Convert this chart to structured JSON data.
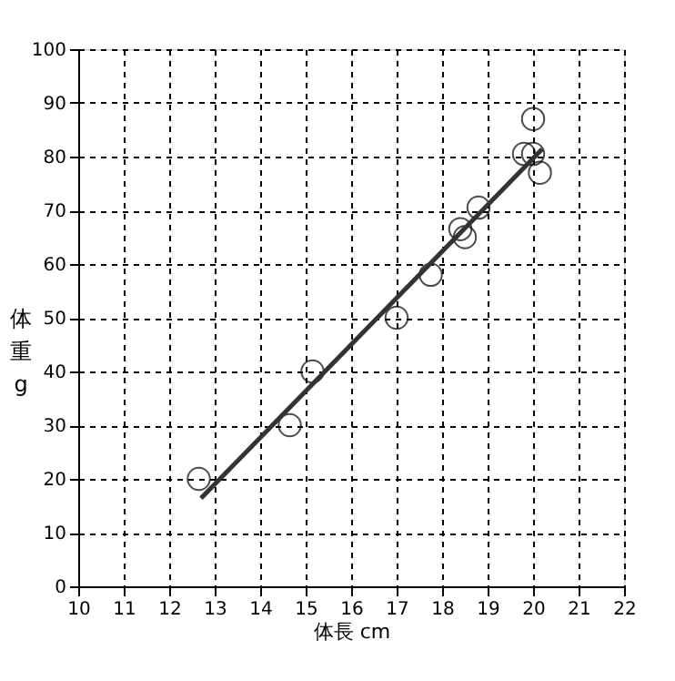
{
  "chart_data": {
    "type": "scatter",
    "xlabel": "体長 cm",
    "ylabel": "体重 g",
    "xlim": [
      10,
      22
    ],
    "xticks": [
      10,
      11,
      12,
      13,
      14,
      15,
      16,
      17,
      18,
      19,
      20,
      21,
      22
    ],
    "ylim": [
      0,
      100
    ],
    "yticks": [
      0,
      10,
      20,
      30,
      40,
      50,
      60,
      70,
      80,
      90,
      100
    ],
    "grid": true,
    "marker": "circle",
    "series": [
      {
        "type": "scatter",
        "color": "#000000",
        "x": [
          12.65,
          14.65,
          15.15,
          17.0,
          17.75,
          18.4,
          18.5,
          18.8,
          19.8,
          20.0,
          20.0,
          20.15
        ],
        "values": [
          20,
          30,
          40,
          50,
          58,
          66.5,
          65,
          70.5,
          80.5,
          80.5,
          87,
          77
        ]
      },
      {
        "type": "line",
        "marker": "none",
        "color": "#333333",
        "x": [
          12.7,
          20.2
        ],
        "values": [
          16.4,
          81.4
        ]
      }
    ]
  }
}
